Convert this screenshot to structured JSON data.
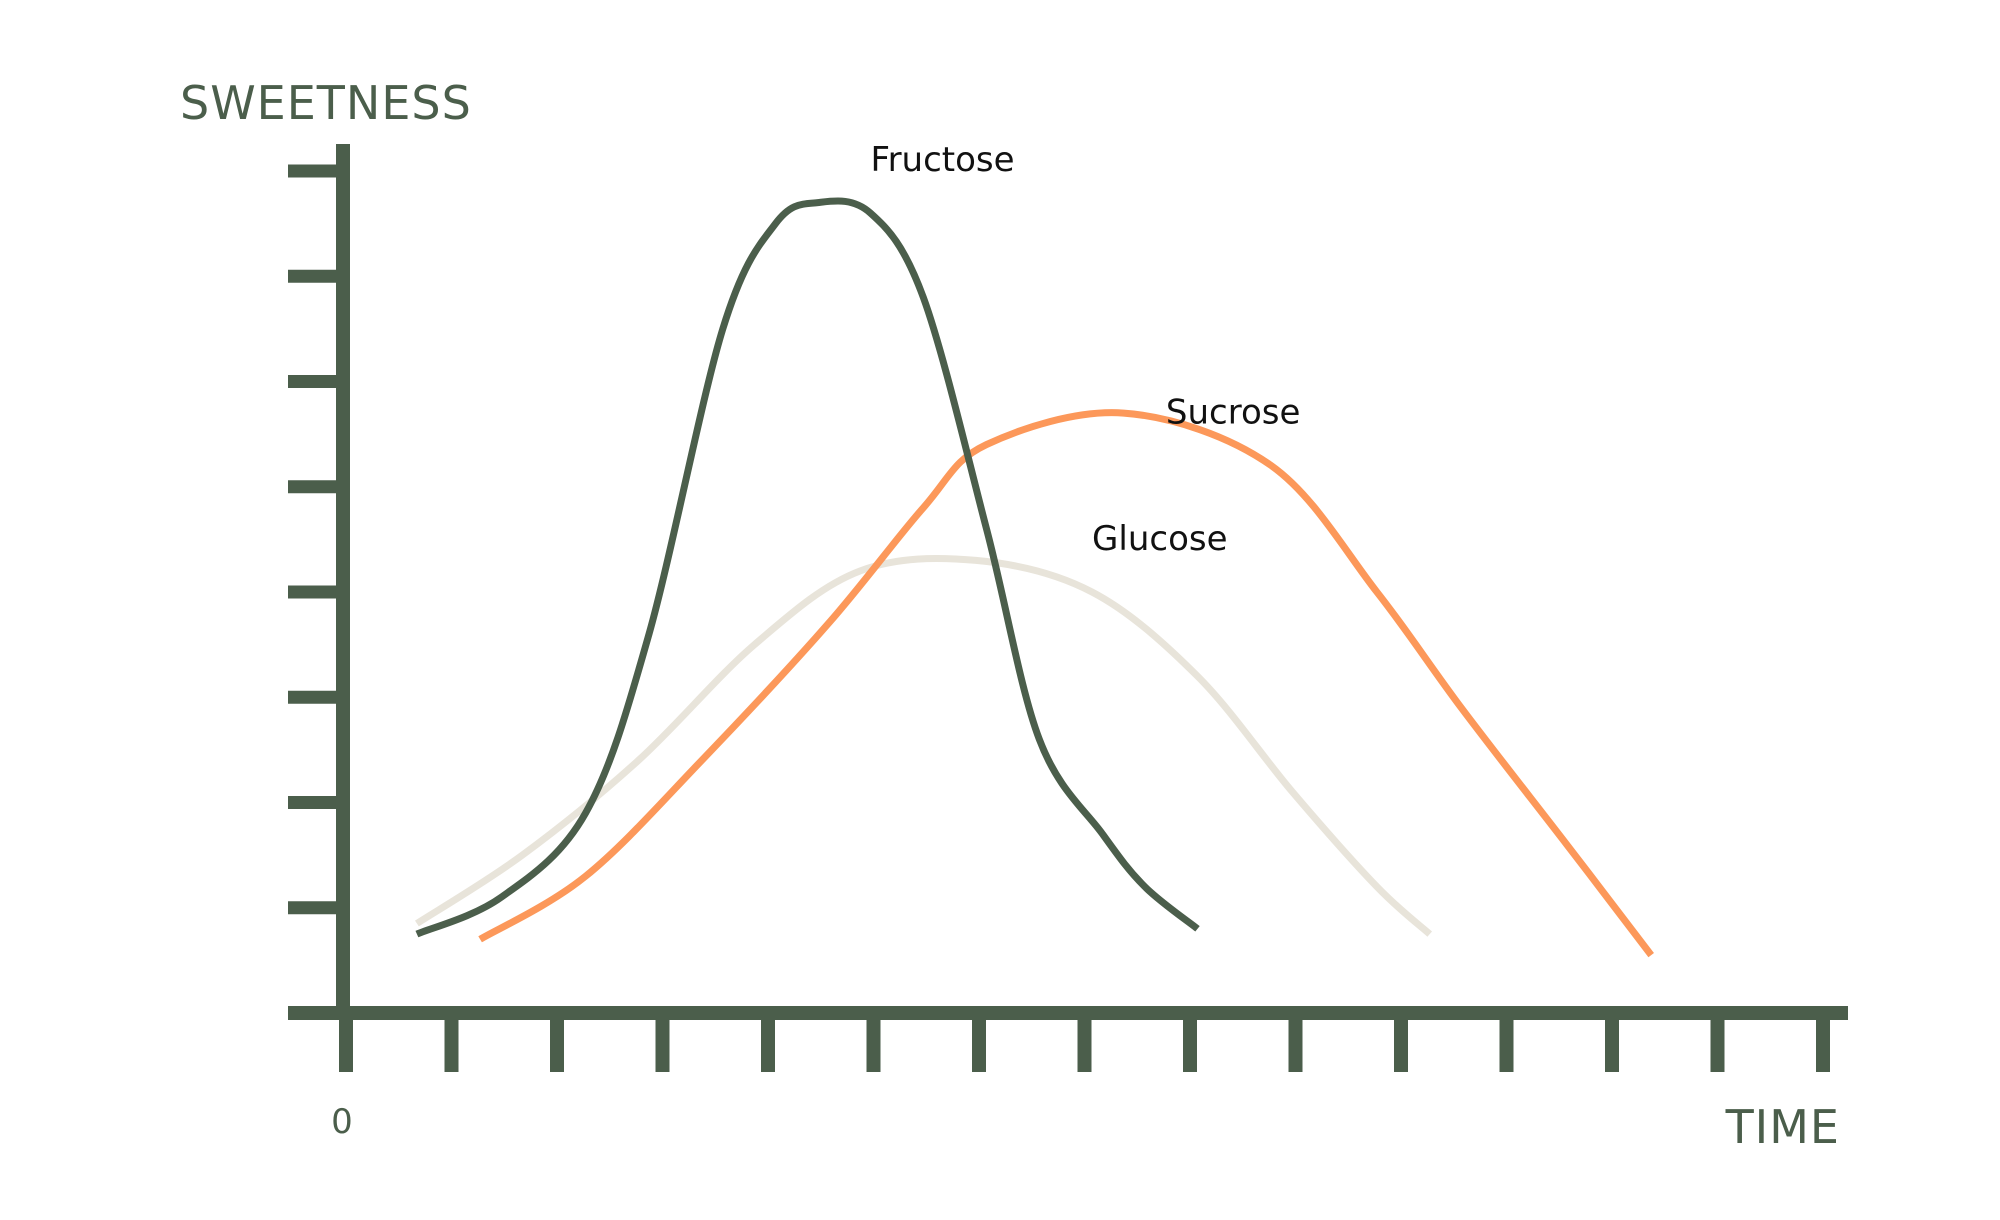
{
  "chart_data": {
    "type": "line",
    "title": "",
    "xlabel": "TIME",
    "ylabel": "SWEETNESS",
    "x_origin_label": "0",
    "xlim": [
      0,
      14
    ],
    "ylim": [
      0,
      8
    ],
    "x_ticks": [
      0,
      1,
      2,
      3,
      4,
      5,
      6,
      7,
      8,
      9,
      10,
      11,
      12,
      13,
      14
    ],
    "y_ticks": [
      1,
      2,
      3,
      4,
      5,
      6,
      7,
      8
    ],
    "grid": false,
    "legend": "none",
    "colors": {
      "axis": "#4b5e4b",
      "fructose": "#4b5e4b",
      "sucrose": "#fc985a",
      "glucose": "#e8e4da"
    },
    "series": [
      {
        "name": "Fructose",
        "color": "#4b5e4b",
        "x": [
          0.7,
          1.5,
          2.3,
          2.9,
          3.6,
          4.1,
          4.5,
          5.0,
          5.5,
          6.1,
          6.6,
          7.2,
          7.6,
          8.1
        ],
        "y": [
          0.75,
          1.1,
          1.9,
          3.6,
          6.5,
          7.5,
          7.7,
          7.6,
          6.8,
          4.6,
          2.6,
          1.7,
          1.2,
          0.8
        ]
      },
      {
        "name": "Sucrose",
        "color": "#fc985a",
        "x": [
          1.3,
          2.3,
          3.4,
          4.6,
          5.5,
          6.1,
          7.4,
          8.8,
          9.8,
          10.6,
          11.6,
          12.4
        ],
        "y": [
          0.7,
          1.3,
          2.4,
          3.7,
          4.8,
          5.4,
          5.7,
          5.2,
          4.0,
          2.9,
          1.6,
          0.55
        ]
      },
      {
        "name": "Glucose",
        "color": "#e8e4da",
        "x": [
          0.7,
          1.7,
          2.8,
          3.9,
          4.9,
          6.0,
          7.1,
          8.1,
          9.0,
          9.8,
          10.3
        ],
        "y": [
          0.85,
          1.5,
          2.4,
          3.5,
          4.2,
          4.3,
          4.0,
          3.2,
          2.1,
          1.2,
          0.75
        ]
      }
    ],
    "label_positions": {
      "Fructose": [
        5.0,
        8.0
      ],
      "Sucrose": [
        7.8,
        5.6
      ],
      "Glucose": [
        7.1,
        4.4
      ]
    }
  }
}
